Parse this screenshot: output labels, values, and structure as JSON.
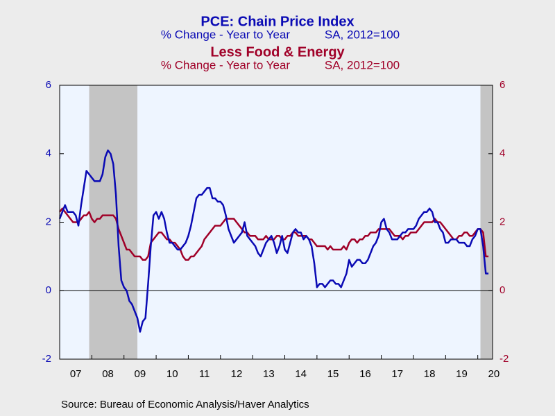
{
  "chart_data": {
    "type": "line",
    "series": [
      {
        "name": "PCE: Chain Price Index",
        "units": "% Change - Year to Year",
        "basis": "SA, 2012=100",
        "color": "#0a0ab4",
        "axis": "y",
        "values": [
          2.1,
          2.3,
          2.5,
          2.3,
          2.3,
          2.3,
          2.2,
          1.9,
          2.5,
          3.0,
          3.5,
          3.4,
          3.3,
          3.2,
          3.2,
          3.2,
          3.4,
          3.9,
          4.1,
          4.0,
          3.7,
          2.8,
          1.3,
          0.3,
          0.1,
          0.0,
          -0.3,
          -0.4,
          -0.6,
          -0.8,
          -1.2,
          -0.9,
          -0.8,
          0.2,
          1.3,
          2.2,
          2.3,
          2.1,
          2.3,
          2.1,
          1.7,
          1.4,
          1.4,
          1.3,
          1.2,
          1.2,
          1.3,
          1.4,
          1.6,
          1.9,
          2.3,
          2.7,
          2.8,
          2.8,
          2.9,
          3.0,
          3.0,
          2.7,
          2.7,
          2.6,
          2.6,
          2.5,
          2.2,
          1.8,
          1.6,
          1.4,
          1.5,
          1.6,
          1.7,
          2.0,
          1.6,
          1.5,
          1.4,
          1.3,
          1.1,
          1.0,
          1.2,
          1.4,
          1.5,
          1.6,
          1.4,
          1.1,
          1.3,
          1.6,
          1.2,
          1.1,
          1.4,
          1.7,
          1.8,
          1.7,
          1.7,
          1.5,
          1.6,
          1.5,
          1.3,
          0.8,
          0.1,
          0.2,
          0.2,
          0.1,
          0.2,
          0.3,
          0.3,
          0.2,
          0.2,
          0.1,
          0.3,
          0.5,
          0.9,
          0.7,
          0.8,
          0.9,
          0.9,
          0.8,
          0.8,
          0.9,
          1.1,
          1.3,
          1.4,
          1.6,
          2.0,
          2.1,
          1.8,
          1.7,
          1.5,
          1.5,
          1.5,
          1.6,
          1.7,
          1.7,
          1.8,
          1.8,
          1.8,
          1.9,
          2.1,
          2.2,
          2.3,
          2.3,
          2.4,
          2.3,
          2.0,
          2.0,
          1.8,
          1.7,
          1.4,
          1.4,
          1.5,
          1.5,
          1.5,
          1.4,
          1.4,
          1.4,
          1.3,
          1.3,
          1.5,
          1.6,
          1.8,
          1.8,
          1.3,
          0.5,
          0.5
        ]
      },
      {
        "name": "Less Food & Energy",
        "units": "% Change - Year to Year",
        "basis": "SA, 2012=100",
        "color": "#a00028",
        "axis": "y2",
        "values": [
          2.3,
          2.4,
          2.3,
          2.2,
          2.1,
          2.0,
          2.0,
          2.0,
          2.1,
          2.2,
          2.2,
          2.3,
          2.1,
          2.0,
          2.1,
          2.1,
          2.2,
          2.2,
          2.2,
          2.2,
          2.2,
          2.1,
          1.8,
          1.6,
          1.4,
          1.2,
          1.2,
          1.1,
          1.0,
          1.0,
          1.0,
          0.9,
          0.9,
          1.0,
          1.4,
          1.5,
          1.6,
          1.7,
          1.7,
          1.6,
          1.5,
          1.5,
          1.4,
          1.4,
          1.3,
          1.2,
          1.0,
          0.9,
          0.9,
          1.0,
          1.0,
          1.1,
          1.2,
          1.3,
          1.5,
          1.6,
          1.7,
          1.8,
          1.9,
          1.9,
          1.9,
          2.0,
          2.1,
          2.1,
          2.1,
          2.1,
          2.0,
          1.9,
          1.8,
          1.7,
          1.7,
          1.6,
          1.6,
          1.6,
          1.5,
          1.5,
          1.5,
          1.6,
          1.5,
          1.5,
          1.5,
          1.6,
          1.6,
          1.5,
          1.5,
          1.6,
          1.6,
          1.7,
          1.7,
          1.6,
          1.6,
          1.6,
          1.6,
          1.5,
          1.5,
          1.4,
          1.3,
          1.3,
          1.3,
          1.3,
          1.2,
          1.3,
          1.2,
          1.2,
          1.2,
          1.2,
          1.3,
          1.2,
          1.4,
          1.5,
          1.5,
          1.4,
          1.5,
          1.5,
          1.6,
          1.6,
          1.7,
          1.7,
          1.7,
          1.8,
          1.8,
          1.8,
          1.8,
          1.8,
          1.7,
          1.6,
          1.6,
          1.6,
          1.5,
          1.6,
          1.6,
          1.7,
          1.7,
          1.7,
          1.8,
          1.9,
          2.0,
          2.0,
          2.0,
          2.0,
          2.1,
          2.0,
          2.0,
          1.9,
          1.8,
          1.7,
          1.6,
          1.5,
          1.5,
          1.6,
          1.6,
          1.7,
          1.7,
          1.6,
          1.6,
          1.7,
          1.8,
          1.8,
          1.7,
          1.0,
          1.0
        ]
      }
    ],
    "x": [
      2007,
      2007.083,
      2007.167,
      2007.25,
      2007.333,
      2007.417,
      2007.5,
      2007.583,
      2007.667,
      2007.75,
      2007.833,
      2007.917,
      2008,
      2008.083,
      2008.167,
      2008.25,
      2008.333,
      2008.417,
      2008.5,
      2008.583,
      2008.667,
      2008.75,
      2008.833,
      2008.917,
      2009,
      2009.083,
      2009.167,
      2009.25,
      2009.333,
      2009.417,
      2009.5,
      2009.583,
      2009.667,
      2009.75,
      2009.833,
      2009.917,
      2010,
      2010.083,
      2010.167,
      2010.25,
      2010.333,
      2010.417,
      2010.5,
      2010.583,
      2010.667,
      2010.75,
      2010.833,
      2010.917,
      2011,
      2011.083,
      2011.167,
      2011.25,
      2011.333,
      2011.417,
      2011.5,
      2011.583,
      2011.667,
      2011.75,
      2011.833,
      2011.917,
      2012,
      2012.083,
      2012.167,
      2012.25,
      2012.333,
      2012.417,
      2012.5,
      2012.583,
      2012.667,
      2012.75,
      2012.833,
      2012.917,
      2013,
      2013.083,
      2013.167,
      2013.25,
      2013.333,
      2013.417,
      2013.5,
      2013.583,
      2013.667,
      2013.75,
      2013.833,
      2013.917,
      2014,
      2014.083,
      2014.167,
      2014.25,
      2014.333,
      2014.417,
      2014.5,
      2014.583,
      2014.667,
      2014.75,
      2014.833,
      2014.917,
      2015,
      2015.083,
      2015.167,
      2015.25,
      2015.333,
      2015.417,
      2015.5,
      2015.583,
      2015.667,
      2015.75,
      2015.833,
      2015.917,
      2016,
      2016.083,
      2016.167,
      2016.25,
      2016.333,
      2016.417,
      2016.5,
      2016.583,
      2016.667,
      2016.75,
      2016.833,
      2016.917,
      2017,
      2017.083,
      2017.167,
      2017.25,
      2017.333,
      2017.417,
      2017.5,
      2017.583,
      2017.667,
      2017.75,
      2017.833,
      2017.917,
      2018,
      2018.083,
      2018.167,
      2018.25,
      2018.333,
      2018.417,
      2018.5,
      2018.583,
      2018.667,
      2018.75,
      2018.833,
      2018.917,
      2019,
      2019.083,
      2019.167,
      2019.25,
      2019.333,
      2019.417,
      2019.5,
      2019.583,
      2019.667,
      2019.75,
      2019.833,
      2019.917,
      2020,
      2020.083,
      2020.167,
      2020.25,
      2020.333
    ],
    "xlim": [
      2007,
      2020.46
    ],
    "xticks": [
      {
        "value": 2007,
        "label": "07"
      },
      {
        "value": 2008,
        "label": "08"
      },
      {
        "value": 2009,
        "label": "09"
      },
      {
        "value": 2010,
        "label": "10"
      },
      {
        "value": 2011,
        "label": "11"
      },
      {
        "value": 2012,
        "label": "12"
      },
      {
        "value": 2013,
        "label": "13"
      },
      {
        "value": 2014,
        "label": "14"
      },
      {
        "value": 2015,
        "label": "15"
      },
      {
        "value": 2016,
        "label": "16"
      },
      {
        "value": 2017,
        "label": "17"
      },
      {
        "value": 2018,
        "label": "18"
      },
      {
        "value": 2019,
        "label": "19"
      },
      {
        "value": 2020,
        "label": "20"
      }
    ],
    "ylim": [
      -2,
      6
    ],
    "yticks": [
      -2,
      0,
      2,
      4,
      6
    ],
    "y2lim": [
      -2,
      6
    ],
    "y2ticks": [
      -2,
      0,
      2,
      4,
      6
    ],
    "recessions": [
      [
        2007.917,
        2009.417
      ],
      [
        2020.083,
        2020.46
      ]
    ],
    "recession_color": "#c4c4c4",
    "plot_background": "#eef5ff",
    "source": "Source:  Bureau of Economic Analysis/Haver Analytics"
  }
}
